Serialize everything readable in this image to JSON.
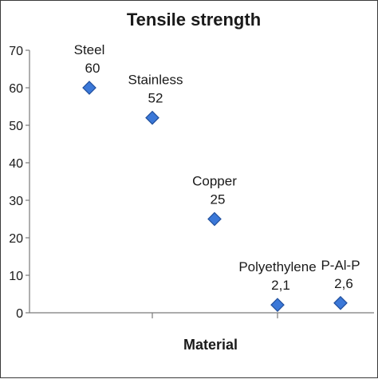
{
  "chart_data": {
    "type": "scatter",
    "title": "Tensile strength",
    "xlabel": "Material",
    "ylabel": "",
    "ylim": [
      0,
      70
    ],
    "yticks": [
      "0",
      "10",
      "20",
      "30",
      "40",
      "50",
      "60",
      "70"
    ],
    "ytick_values": [
      0,
      10,
      20,
      30,
      40,
      50,
      60,
      70
    ],
    "grid": false,
    "legend": "none",
    "series": [
      {
        "points": [
          {
            "name": "Steel",
            "value_label": "60",
            "x": 1,
            "y": 60
          },
          {
            "name": "Stainless",
            "value_label": "52",
            "x": 2,
            "y": 52
          },
          {
            "name": "Copper",
            "value_label": "25",
            "x": 3,
            "y": 25
          },
          {
            "name": "Polyethylene",
            "value_label": "2,1",
            "x": 4,
            "y": 2.1
          },
          {
            "name": "P-Al-P",
            "value_label": "2,6",
            "x": 5,
            "y": 2.6
          }
        ]
      }
    ],
    "colors": {
      "marker_fill": "#3b78d8",
      "marker_stroke": "#1f4e9c",
      "axis": "#7a7a7a",
      "text": "#1a1a1a"
    }
  }
}
